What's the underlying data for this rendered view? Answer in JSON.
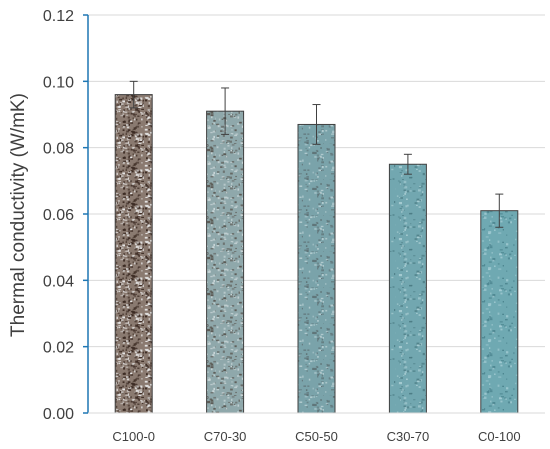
{
  "chart_data": {
    "type": "bar",
    "title": "",
    "xlabel": "",
    "ylabel": "Thermal conductivity (W/mK)",
    "ylim": [
      0,
      0.12
    ],
    "yticks": [
      "0.00",
      "0.02",
      "0.04",
      "0.06",
      "0.08",
      "0.10",
      "0.12"
    ],
    "grid": true,
    "legend": "none",
    "categories": [
      "C100-0",
      "C70-30",
      "C50-50",
      "C30-70",
      "C0-100"
    ],
    "values": [
      0.096,
      0.091,
      0.087,
      0.075,
      0.061
    ],
    "errors": [
      0.004,
      0.007,
      0.006,
      0.003,
      0.005
    ],
    "colors": {
      "axis": "#1f77b4",
      "grid": "#d9d9d9",
      "bar_edge": "#404040",
      "error_bar": "#404040",
      "bar_base": [
        "#8a7a70",
        "#8fa8ab",
        "#7aa3aa",
        "#72a7b0",
        "#6fa9b2"
      ],
      "bar_speckle_light": [
        "#e8e8e8",
        "#c9d6d8",
        "#b9d0d4",
        "#a9cdd3",
        "#a2cbd2"
      ],
      "bar_speckle_dark": [
        "#3b2a22",
        "#5b5a55",
        "#5f7478",
        "#4d7e86",
        "#4d8690"
      ]
    }
  }
}
